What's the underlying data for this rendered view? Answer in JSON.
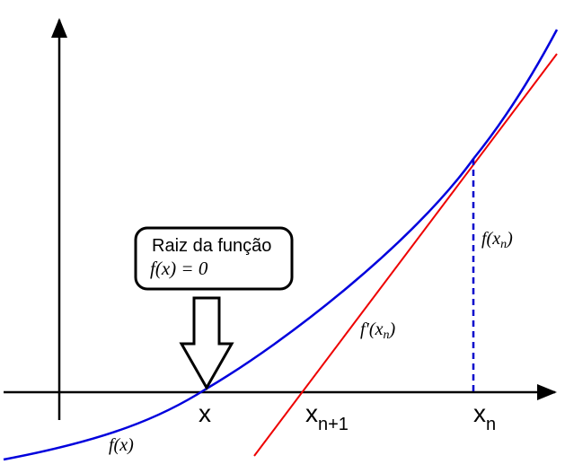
{
  "colors": {
    "axis": "#000000",
    "curve": "#0000dd",
    "tangent": "#ee0000",
    "dashed": "#0000cc",
    "callout_fill": "#ffffff",
    "callout_stroke": "#000000"
  },
  "labels": {
    "curve_label": "f(x)",
    "root_x": "x",
    "x_next_base": "x",
    "x_next_sub": "n+1",
    "x_n_base": "x",
    "x_n_sub": "n",
    "f_xn": "f(x",
    "f_xn_sub": "n",
    "f_xn_close": ")",
    "fprime_xn": "f′(x",
    "fprime_xn_sub": "n",
    "fprime_xn_close": ")"
  },
  "callout": {
    "title": "Raiz da função",
    "equation": "f(x) = 0"
  },
  "icons": {
    "root_arrow": "down-arrow-icon"
  }
}
